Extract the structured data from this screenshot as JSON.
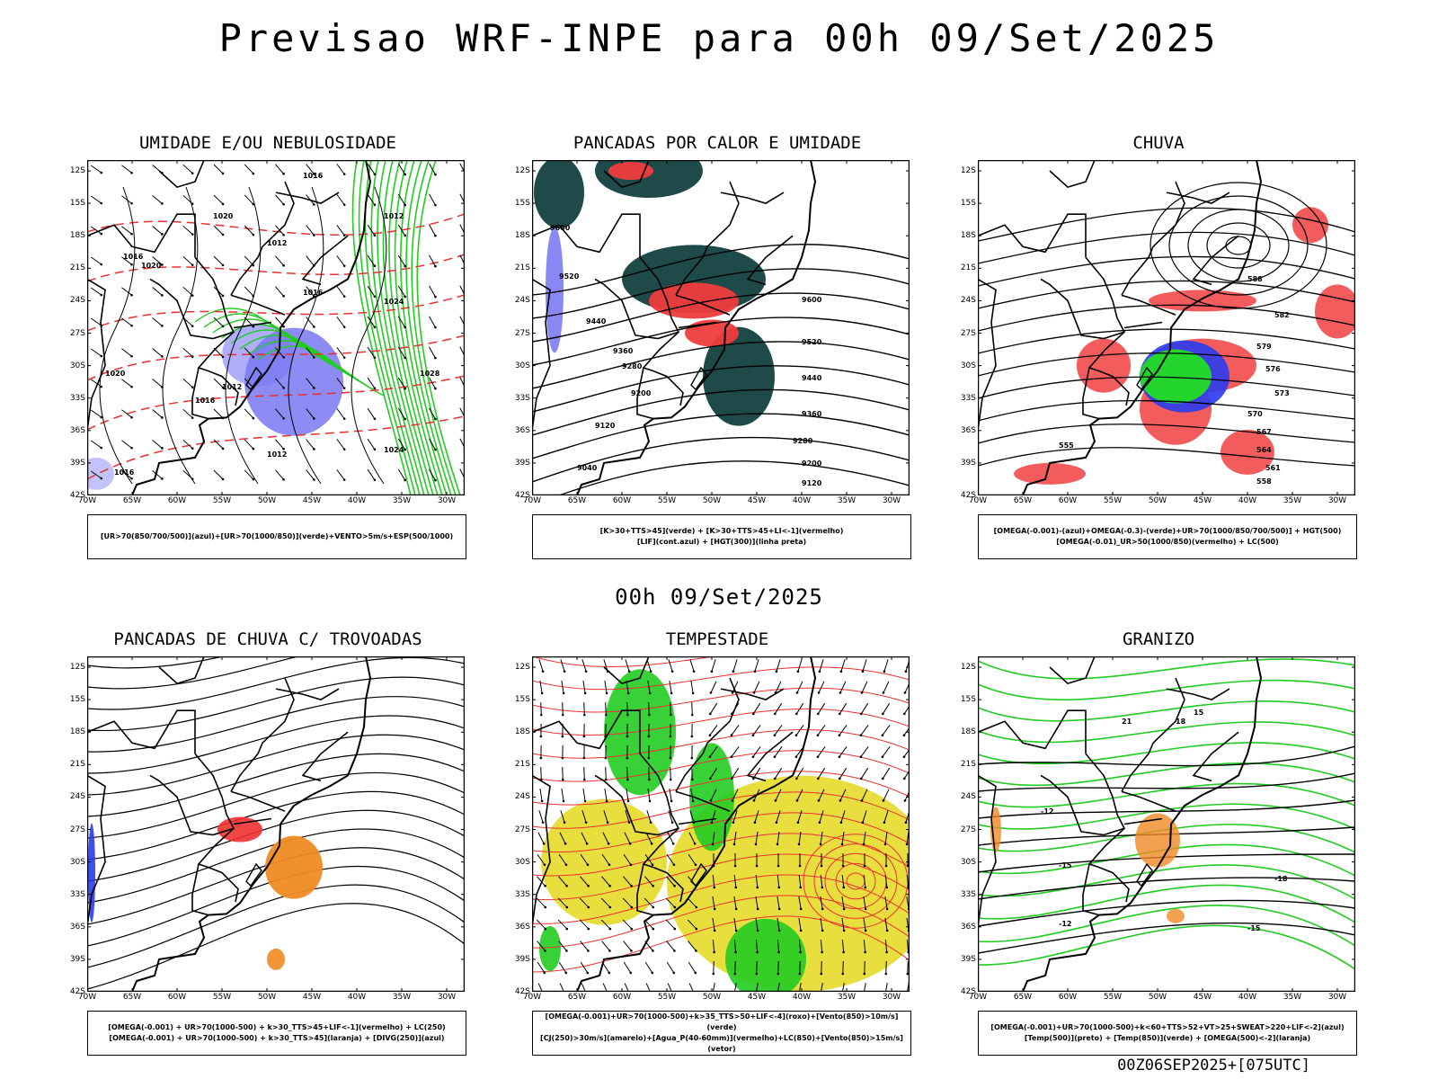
{
  "header": {
    "title": "Previsao WRF-INPE  para 00h 09/Set/2025",
    "mid_title": "00h 09/Set/2025",
    "footer": "00Z06SEP2025+[075UTC]"
  },
  "axes": {
    "lat_labels": [
      "12S",
      "15S",
      "18S",
      "21S",
      "24S",
      "27S",
      "30S",
      "33S",
      "36S",
      "39S",
      "42S"
    ],
    "lon_labels": [
      "70W",
      "65W",
      "60W",
      "55W",
      "50W",
      "45W",
      "40W",
      "35W",
      "30W"
    ]
  },
  "panels": [
    {
      "id": "umidade",
      "title": "UMIDADE E/OU NEBULOSIDADE",
      "legend": [
        "[UR>70(850/700/500)](azul)+[UR>70(1000/850)](verde)+VENTO>5m/s+ESP(500/1000)"
      ],
      "contour_labels": [
        "1016",
        "1020",
        "1012",
        "1016",
        "1020",
        "1012",
        "1016",
        "1024",
        "1028",
        "1012",
        "1016",
        "1012",
        "1024",
        "1020",
        "1016"
      ]
    },
    {
      "id": "pancadas-calor",
      "title": "PANCADAS POR CALOR E UMIDADE",
      "legend": [
        "[K>30+TTS>45](verde) + [K>30+TTS>45+LI<-1](vermelho)",
        "[LIF](cont.azul) + [HGT(300)](linha preta)"
      ],
      "contour_labels": [
        "9600",
        "9520",
        "9440",
        "9360",
        "9280",
        "9200",
        "9120",
        "9040",
        "9600",
        "9520",
        "9440",
        "9360",
        "9280",
        "9200",
        "9120"
      ]
    },
    {
      "id": "chuva",
      "title": "CHUVA",
      "legend": [
        "[OMEGA(-0.001)-(azul)+OMEGA(-0.3)-(verde)+UR>70(1000/850/700/500)] + HGT(500)",
        "[OMEGA(-0.01)_UR>50(1000/850)(vermelho) + LC(500)"
      ],
      "contour_labels": [
        "588",
        "582",
        "579",
        "576",
        "573",
        "570",
        "567",
        "564",
        "561",
        "558",
        "555"
      ]
    },
    {
      "id": "pancadas-trovoadas",
      "title": "PANCADAS DE CHUVA C/ TROVOADAS",
      "legend": [
        "[OMEGA(-0.001) + UR>70(1000-500) + k>30_TTS>45+LIF<-1](vermelho) + LC(250)",
        "[OMEGA(-0.001) + UR>70(1000-500) + k>30_TTS>45](laranja) + [DIVG(250)](azul)"
      ],
      "contour_labels": []
    },
    {
      "id": "tempestade",
      "title": "TEMPESTADE",
      "legend": [
        "[OMEGA(-0.001)+UR>70(1000-500)+k>35_TTS>50+LIF<-4](roxo)+[Vento(850)>10m/s](verde)",
        "[CJ(250)>30m/s](amarelo)+[Agua_P(40-60mm)](vermelho)+LC(850)+[Vento(850)>15m/s](vetor)"
      ],
      "contour_labels": []
    },
    {
      "id": "granizo",
      "title": "GRANIZO",
      "legend": [
        "[OMEGA(-0.001)+UR>70(1000-500)+k<60+TTS>52+VT>25+SWEAT>220+LIF<-2](azul)",
        "[Temp(500)](preto) + [Temp(850)](verde) + [OMEGA(500)<-2](laranja)"
      ],
      "contour_labels": [
        "-12",
        "-15",
        "-18",
        "-15",
        "-12",
        "21",
        "18",
        "15"
      ]
    }
  ]
}
